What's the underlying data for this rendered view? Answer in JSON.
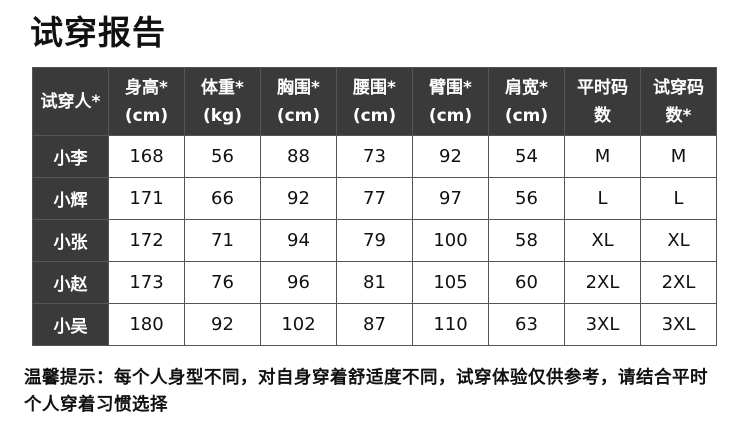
{
  "title": "试穿报告",
  "headers": [
    [
      "试穿人*",
      ""
    ],
    [
      "身高*",
      "(cm)"
    ],
    [
      "体重*",
      "(kg)"
    ],
    [
      "胸围*",
      "(cm)"
    ],
    [
      "腰围*",
      "(cm)"
    ],
    [
      "臂围*",
      "(cm)"
    ],
    [
      "肩宽*",
      "(cm)"
    ],
    [
      "平时码",
      "数"
    ],
    [
      "试穿码",
      "数*"
    ]
  ],
  "rows": [
    [
      "小李",
      "168",
      "56",
      "88",
      "73",
      "92",
      "54",
      "M",
      "M"
    ],
    [
      "小辉",
      "171",
      "66",
      "92",
      "77",
      "97",
      "56",
      "L",
      "L"
    ],
    [
      "小张",
      "172",
      "71",
      "94",
      "79",
      "100",
      "58",
      "XL",
      "XL"
    ],
    [
      "小赵",
      "173",
      "76",
      "96",
      "81",
      "105",
      "60",
      "2XL",
      "2XL"
    ],
    [
      "小吴",
      "180",
      "92",
      "102",
      "87",
      "110",
      "63",
      "3XL",
      "3XL"
    ]
  ],
  "note": "温馨提示：每个人身型不同，对自身穿着舒适度不同，试穿体验仅供参考，请结合平时个人穿着习惯选择"
}
